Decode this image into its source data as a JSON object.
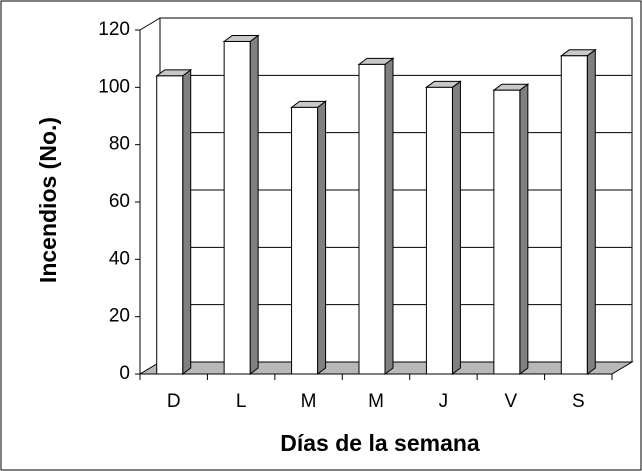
{
  "chart_data": {
    "type": "bar",
    "categories": [
      "D",
      "L",
      "M",
      "M",
      "J",
      "V",
      "S"
    ],
    "values": [
      104,
      116,
      93,
      108,
      100,
      99,
      111
    ],
    "color": "#ffffff",
    "ylim": [
      0,
      120
    ],
    "yticks": [
      0,
      20,
      40,
      60,
      80,
      100,
      120
    ],
    "grid": true,
    "x_label": "Días de la semana",
    "y_label": "Incendios (No.)"
  }
}
